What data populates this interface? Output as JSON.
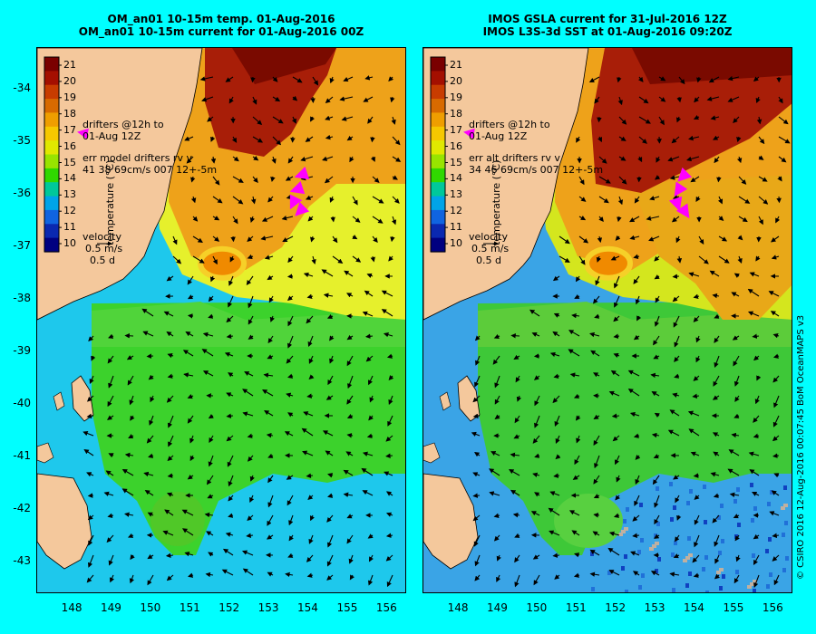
{
  "titles": {
    "left": [
      "OM_an01 10-15m temp. 01-Aug-2016",
      "OM_an01 10-15m current for 01-Aug-2016 00Z"
    ],
    "right": [
      "IMOS GSLA current for 31-Jul-2016 12Z",
      "IMOS L3S-3d SST at 01-Aug-2016 09:20Z"
    ]
  },
  "axes": {
    "lat_labels": [
      "-34",
      "-35",
      "-36",
      "-37",
      "-38",
      "-39",
      "-40",
      "-41",
      "-42",
      "-43"
    ],
    "lon_labels": [
      "148",
      "149",
      "150",
      "151",
      "152",
      "153",
      "154",
      "155",
      "156"
    ],
    "lat_range": [
      -43.6,
      -33.2
    ],
    "lon_range": [
      147.1,
      156.5
    ]
  },
  "colorbar": {
    "title": "temperature (°C)",
    "ticks": [
      "21",
      "20",
      "19",
      "18",
      "17",
      "16",
      "15",
      "14",
      "13",
      "12",
      "11",
      "10"
    ],
    "range": [
      9.5,
      21.5
    ],
    "colors": [
      "#7a0000",
      "#a40f00",
      "#c83c00",
      "#d86a00",
      "#ef9e00",
      "#f6c800",
      "#e0e800",
      "#98e400",
      "#30d800",
      "#00c89a",
      "#00a4e8",
      "#1064e0",
      "#0a28b0",
      "#000080"
    ]
  },
  "panels": {
    "left": {
      "drifters_note": [
        "drifters @12h to",
        "01-Aug 12Z"
      ],
      "err_note": [
        "err model drifters rv v",
        "41 38 69cm/s 007 12+-5m"
      ],
      "velocity_legend": {
        "label": "velocity",
        "speed": "0.5 m/s",
        "duration": "0.5 d"
      }
    },
    "right": {
      "drifters_note": [
        "drifters @12h to",
        "01-Aug 12Z"
      ],
      "err_note": [
        "err alt drifters rv v",
        "34 46 69cm/s 007 12+-5m"
      ],
      "velocity_legend": {
        "label": "velocity",
        "speed": "0.5 m/s",
        "duration": "0.5 d"
      }
    }
  },
  "credit": "© CSIRO 2016  12-Aug-2016 00:07:45 BoM OceanMAPS v3",
  "colors": {
    "background": "#00ffff",
    "land": "#f4c89c",
    "drifter": "#ff00ff",
    "arrow": "#000000"
  }
}
